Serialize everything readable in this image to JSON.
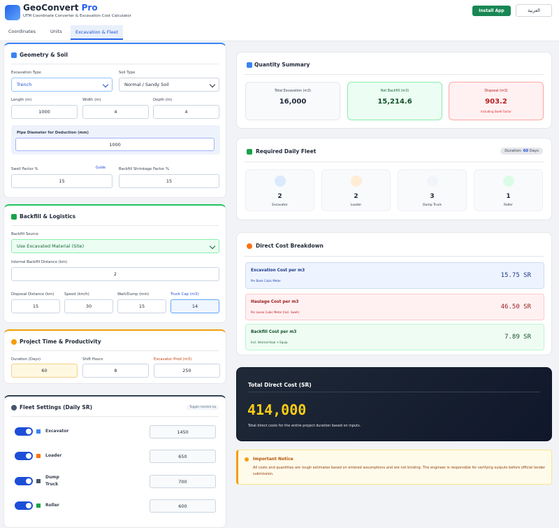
{
  "header": {
    "title": "GeoConvert",
    "title_accent": "Pro",
    "subtitle": "UTM Coordinate Converter & Excavation Cost Calculator",
    "install_button": "Install App",
    "language_button": "العربية"
  },
  "tabs": [
    "Coordinates",
    "Units",
    "Excavation & Fleet"
  ],
  "geometry": {
    "title": "Geometry & Soil",
    "excavation_type": {
      "label": "Excavation Type",
      "value": "Trench"
    },
    "soil_type": {
      "label": "Soil Type",
      "value": "Normal / Sandy Soil"
    },
    "length": {
      "label": "Length (m)",
      "value": "1000"
    },
    "width": {
      "label": "Width (m)",
      "value": "4"
    },
    "depth": {
      "label": "Depth (m)",
      "value": "4"
    },
    "pipe": {
      "label": "Pipe Diameter for Deduction (mm)",
      "value": "1000"
    },
    "swell": {
      "label": "Swell Factor %",
      "guide": "Guide",
      "value": "15"
    },
    "shrinkage": {
      "label": "Backfill Shrinkage Factor %",
      "value": "15"
    }
  },
  "backfill": {
    "title": "Backfill & Logistics",
    "source": {
      "label": "Backfill Source",
      "value": "Use Excavated Material (Site)"
    },
    "internal_distance": {
      "label": "Internal Backfill Distance (km)",
      "value": "2"
    },
    "disposal_distance": {
      "label": "Disposal Distance (km)",
      "value": "15"
    },
    "speed": {
      "label": "Speed (km/h)",
      "value": "30"
    },
    "wait": {
      "label": "Wait/Dump (min)",
      "value": "15"
    },
    "truck_cap": {
      "label": "Truck Cap (m3)",
      "value": "14"
    }
  },
  "project": {
    "title": "Project Time & Productivity",
    "duration": {
      "label": "Duration (Days)",
      "value": "60"
    },
    "shift": {
      "label": "Shift Hours",
      "value": "8"
    },
    "productivity": {
      "label": "Excavator Prod (m3)",
      "value": "250"
    }
  },
  "fleet_settings": {
    "title": "Fleet Settings (Daily SR)",
    "toggle_hint": "Toggle needed eq",
    "items": [
      {
        "name": "Excavator",
        "rate": "1450"
      },
      {
        "name": "Loader",
        "rate": "650"
      },
      {
        "name": "Dump Truck",
        "rate": "700"
      },
      {
        "name": "Roller",
        "rate": "600"
      }
    ]
  },
  "quantity": {
    "title": "Quantity Summary",
    "cards": [
      {
        "label": "Total Excavation (m3)",
        "value": "16,000"
      },
      {
        "label": "Net Backfill (m3)",
        "value": "15,214.6"
      },
      {
        "label": "Disposal (m3)",
        "value": "903.2",
        "note": "Including Swell Factor"
      }
    ]
  },
  "daily_fleet": {
    "title": "Required Daily Fleet",
    "duration_label": "Duration:",
    "duration_value": "60",
    "duration_unit": "Days",
    "items": [
      {
        "count": "2",
        "name": "Excavator"
      },
      {
        "count": "2",
        "name": "Loader"
      },
      {
        "count": "3",
        "name": "Dump Truck"
      },
      {
        "count": "1",
        "name": "Roller"
      }
    ]
  },
  "cost_breakdown": {
    "title": "Direct Cost Breakdown",
    "rows": [
      {
        "label": "Excavation Cost per m3",
        "note": "Per Bank Cubic Meter",
        "value": "15.75 SR"
      },
      {
        "label": "Haulage Cost per m3",
        "note": "Per Loose Cubic Meter (Incl. Swell)",
        "value": "46.50 SR"
      },
      {
        "label": "Backfill Cost per m3",
        "note": "Incl. Internal Haul + Equip",
        "value": "7.89 SR"
      }
    ]
  },
  "total": {
    "title": "Total Direct Cost (SR)",
    "value": "414,000",
    "note": "Total direct costs for the entire project duration based on inputs."
  },
  "notice": {
    "title": "Important Notice",
    "text": "All costs and quantities are rough estimates based on entered assumptions and are not binding. The engineer is responsible for verifying outputs before official tender submission."
  }
}
